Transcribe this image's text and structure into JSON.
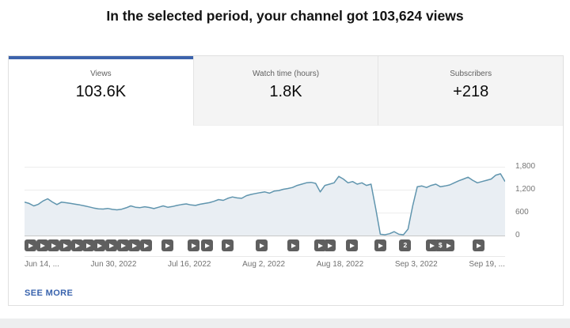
{
  "title": "In the selected period, your channel got 103,624 views",
  "tabs": [
    {
      "label": "Views",
      "value": "103.6K",
      "active": true
    },
    {
      "label": "Watch time (hours)",
      "value": "1.8K",
      "active": false
    },
    {
      "label": "Subscribers",
      "value": "+218",
      "active": false
    }
  ],
  "see_more_label": "SEE MORE",
  "colors": {
    "accent_blue": "#3c63ac",
    "link_blue": "#3963ad",
    "line": "#6095ae",
    "area_fill": "#e9eef3",
    "marker_gray": "#5f5f5f",
    "zero_axis": "#c7c7c7"
  },
  "chart_data": {
    "type": "area",
    "title": "Channel views over selected period",
    "xlabel": "",
    "ylabel": "Views",
    "ylim": [
      0,
      1800
    ],
    "grid": true,
    "y_axis_side": "right",
    "x_tick_labels": [
      "Jun 14, ...",
      "Jun 30, 2022",
      "Jul 16, 2022",
      "Aug 2, 2022",
      "Aug 18, 2022",
      "Sep 3, 2022",
      "Sep 19, ..."
    ],
    "y_ticks": [
      {
        "value": 0,
        "label": "0"
      },
      {
        "value": 600,
        "label": "600"
      },
      {
        "value": 1200,
        "label": "1,200"
      },
      {
        "value": 1800,
        "label": "1,800"
      }
    ],
    "values": [
      875,
      840,
      775,
      820,
      905,
      962,
      880,
      810,
      875,
      858,
      840,
      820,
      800,
      775,
      748,
      720,
      700,
      694,
      710,
      685,
      673,
      690,
      726,
      775,
      740,
      730,
      753,
      735,
      705,
      740,
      775,
      740,
      760,
      788,
      810,
      828,
      800,
      788,
      820,
      841,
      860,
      895,
      941,
      920,
      975,
      1009,
      985,
      975,
      1043,
      1076,
      1100,
      1123,
      1143,
      1109,
      1163,
      1177,
      1211,
      1231,
      1257,
      1311,
      1345,
      1379,
      1393,
      1366,
      1143,
      1311,
      1345,
      1379,
      1547,
      1479,
      1379,
      1413,
      1345,
      1379,
      1311,
      1345,
      705,
      34,
      20,
      47,
      101,
      34,
      20,
      168,
      775,
      1277,
      1297,
      1257,
      1311,
      1345,
      1277,
      1297,
      1324,
      1379,
      1433,
      1479,
      1527,
      1447,
      1379,
      1413,
      1447,
      1479,
      1581,
      1615,
      1413
    ],
    "markers": [
      {
        "x": 0.0,
        "type": "video"
      },
      {
        "x": 0.025,
        "type": "video"
      },
      {
        "x": 0.049,
        "type": "video"
      },
      {
        "x": 0.074,
        "type": "video"
      },
      {
        "x": 0.099,
        "type": "video"
      },
      {
        "x": 0.124,
        "type": "video"
      },
      {
        "x": 0.148,
        "type": "video"
      },
      {
        "x": 0.173,
        "type": "video"
      },
      {
        "x": 0.198,
        "type": "video"
      },
      {
        "x": 0.222,
        "type": "video"
      },
      {
        "x": 0.247,
        "type": "video"
      },
      {
        "x": 0.292,
        "type": "video"
      },
      {
        "x": 0.349,
        "type": "video"
      },
      {
        "x": 0.377,
        "type": "video"
      },
      {
        "x": 0.422,
        "type": "video"
      },
      {
        "x": 0.494,
        "type": "video"
      },
      {
        "x": 0.562,
        "type": "video"
      },
      {
        "x": 0.619,
        "type": "video"
      },
      {
        "x": 0.639,
        "type": "video"
      },
      {
        "x": 0.687,
        "type": "video"
      },
      {
        "x": 0.748,
        "type": "video"
      },
      {
        "x": 0.801,
        "type": "count",
        "label": "2"
      },
      {
        "x": 0.858,
        "type": "video"
      },
      {
        "x": 0.876,
        "type": "dollar",
        "label": "$"
      },
      {
        "x": 0.894,
        "type": "video"
      },
      {
        "x": 0.957,
        "type": "video"
      }
    ]
  }
}
